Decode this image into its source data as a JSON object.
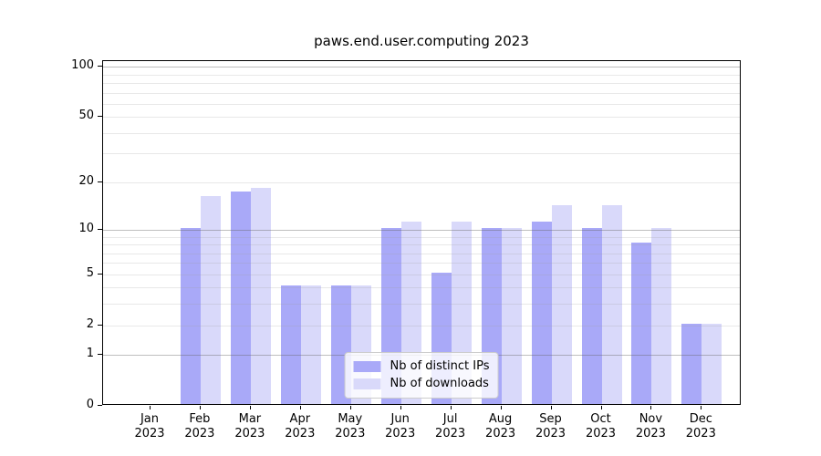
{
  "chart_data": {
    "type": "bar",
    "title": "paws.end.user.computing 2023",
    "categories": [
      "Jan",
      "Feb",
      "Mar",
      "Apr",
      "May",
      "Jun",
      "Jul",
      "Aug",
      "Sep",
      "Oct",
      "Nov",
      "Dec"
    ],
    "category_year": "2023",
    "series": [
      {
        "name": "Nb of distinct IPs",
        "color": "#a9a9f8",
        "values": [
          0,
          10,
          17,
          4,
          4,
          10,
          5,
          10,
          11,
          10,
          8,
          2
        ]
      },
      {
        "name": "Nb of downloads",
        "color": "#d9d9fa",
        "values": [
          0,
          16,
          18,
          4,
          4,
          11,
          11,
          10,
          14,
          14,
          10,
          2
        ]
      }
    ],
    "yscale": "log1p",
    "ylim": [
      0,
      108
    ],
    "y_ticks": [
      0,
      1,
      2,
      5,
      10,
      20,
      50,
      100
    ],
    "y_major_gridlines": [
      1,
      10,
      100
    ],
    "y_minor_gridlines": [
      2,
      3,
      4,
      5,
      6,
      7,
      8,
      9,
      20,
      30,
      40,
      50,
      60,
      70,
      80,
      90
    ],
    "grid": true,
    "legend_position": "lower center",
    "legend_labels": [
      "Nb of distinct IPs",
      "Nb of downloads"
    ]
  }
}
